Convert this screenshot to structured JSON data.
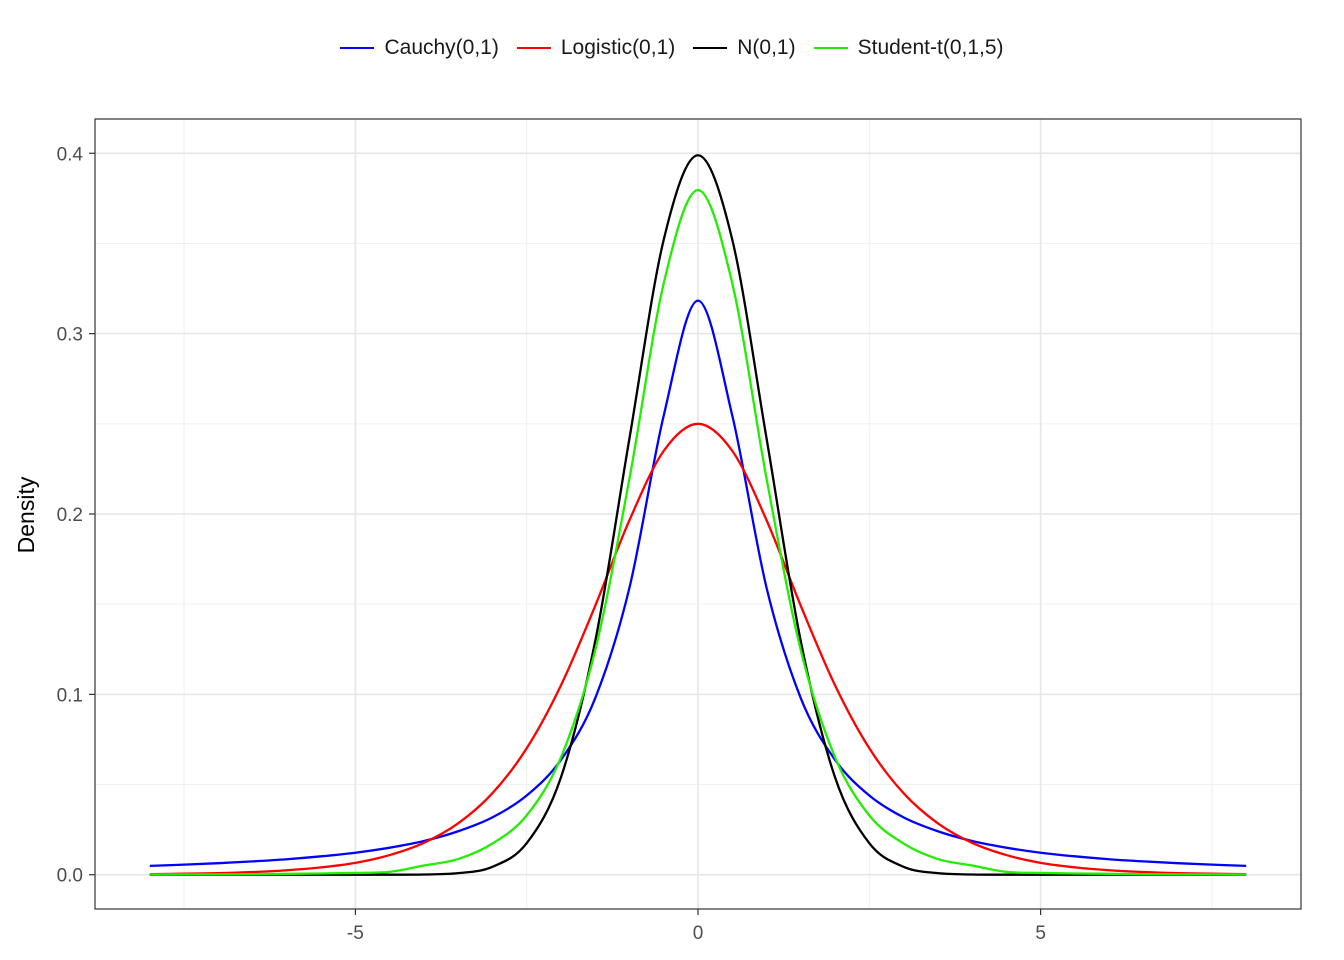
{
  "chart_data": {
    "type": "line",
    "title": "",
    "xlabel": "",
    "ylabel": "Density",
    "xlim": [
      -8.8,
      8.8
    ],
    "ylim": [
      -0.019,
      0.419
    ],
    "xticks": [
      -5,
      0,
      5
    ],
    "xtick_labels": [
      "-5",
      "0",
      "5"
    ],
    "yticks": [
      0.0,
      0.1,
      0.2,
      0.3,
      0.4
    ],
    "ytick_labels": [
      "0.0",
      "0.1",
      "0.2",
      "0.3",
      "0.4"
    ],
    "grid": true,
    "legend_position": "top",
    "x": [
      -8,
      -7.5,
      -7,
      -6.5,
      -6,
      -5.5,
      -5,
      -4.5,
      -4,
      -3.5,
      -3,
      -2.5,
      -2,
      -1.5,
      -1,
      -0.5,
      0,
      0.5,
      1,
      1.5,
      2,
      2.5,
      3,
      3.5,
      4,
      4.5,
      5,
      5.5,
      6,
      6.5,
      7,
      7.5,
      8
    ],
    "series": [
      {
        "name": "Cauchy(0,1)",
        "color": "#0000ff",
        "values": [
          0.0049,
          0.0056,
          0.0064,
          0.0074,
          0.0086,
          0.0102,
          0.0122,
          0.015,
          0.0187,
          0.0241,
          0.0318,
          0.0439,
          0.0637,
          0.0979,
          0.1592,
          0.2546,
          0.3183,
          0.2546,
          0.1592,
          0.0979,
          0.0637,
          0.0439,
          0.0318,
          0.0241,
          0.0187,
          0.015,
          0.0122,
          0.0102,
          0.0086,
          0.0074,
          0.0064,
          0.0056,
          0.0049
        ]
      },
      {
        "name": "Logistic(0,1)",
        "color": "#ff0000",
        "values": [
          0.0003,
          0.0006,
          0.0009,
          0.0015,
          0.0025,
          0.0041,
          0.0066,
          0.0109,
          0.0177,
          0.0285,
          0.0452,
          0.0701,
          0.105,
          0.1491,
          0.1966,
          0.235,
          0.25,
          0.235,
          0.1966,
          0.1491,
          0.105,
          0.0701,
          0.0452,
          0.0285,
          0.0177,
          0.0109,
          0.0066,
          0.0041,
          0.0025,
          0.0015,
          0.0009,
          0.0006,
          0.0003
        ]
      },
      {
        "name": "N(0,1)",
        "color": "#000000",
        "values": [
          0,
          0,
          0,
          0,
          0,
          0,
          1.5e-06,
          1.6e-05,
          0.000134,
          0.00087,
          0.0044,
          0.0175,
          0.054,
          0.1295,
          0.242,
          0.3521,
          0.3989,
          0.3521,
          0.242,
          0.1295,
          0.054,
          0.0175,
          0.0044,
          0.00087,
          0.000134,
          1.6e-05,
          1.5e-06,
          0,
          0,
          0,
          0,
          0,
          0
        ]
      },
      {
        "name": "Student-t(0,1,5)",
        "color": "#22ee00",
        "values": [
          0.0001,
          0.0002,
          0.0002,
          0.0003,
          0.0005,
          0.0007,
          0.001,
          0.0016,
          0.0051,
          0.0087,
          0.0173,
          0.0329,
          0.0651,
          0.1245,
          0.2197,
          0.3279,
          0.3796,
          0.3279,
          0.2197,
          0.1245,
          0.0651,
          0.0329,
          0.0173,
          0.0087,
          0.0051,
          0.0016,
          0.001,
          0.0007,
          0.0005,
          0.0003,
          0.0002,
          0.0002,
          0.0001
        ]
      }
    ]
  }
}
